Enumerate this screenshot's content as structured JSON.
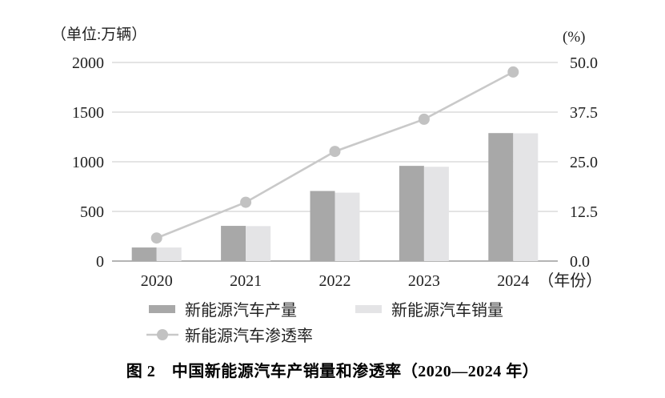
{
  "caption": "图 2　中国新能源汽车产销量和渗透率（2020—2024 年）",
  "colors": {
    "production": "#a8a8a8",
    "sales": "#e4e4e6",
    "line": "#c9c9c9",
    "marker": "#c2c2c2",
    "grid": "#cacaca",
    "axis": "#9b9b9b",
    "text": "#1f1f1f"
  },
  "legend": {
    "production_label": "新能源汽车产量",
    "sales_label": "新能源汽车销量",
    "penetration_label": "新能源汽车渗透率"
  },
  "chart_data": {
    "type": "bar+line",
    "title": "中国新能源汽车产销量和渗透率（2020—2024 年）",
    "categories": [
      "2020",
      "2021",
      "2022",
      "2023",
      "2024"
    ],
    "x_suffix": "（年份）",
    "series": [
      {
        "name": "新能源汽车产量",
        "type": "bar",
        "axis": "left",
        "values": [
          136.6,
          354.5,
          705.8,
          958.7,
          1288.8
        ],
        "color": "#a8a8a8"
      },
      {
        "name": "新能源汽车销量",
        "type": "bar",
        "axis": "left",
        "values": [
          136.7,
          352.1,
          688.7,
          949.5,
          1286.6
        ],
        "color": "#e4e4e6"
      },
      {
        "name": "新能源汽车渗透率",
        "type": "line",
        "axis": "right",
        "values": [
          5.8,
          14.8,
          27.6,
          35.7,
          47.6
        ],
        "color": "#c9c9c9"
      }
    ],
    "left_axis": {
      "label": "（单位:万辆）",
      "max": 2000,
      "ticks": [
        {
          "v": 0,
          "label": "0"
        },
        {
          "v": 500,
          "label": "500"
        },
        {
          "v": 1000,
          "label": "1000"
        },
        {
          "v": 1500,
          "label": "1500"
        },
        {
          "v": 2000,
          "label": "2000"
        }
      ]
    },
    "right_axis": {
      "label": "(%)",
      "max": 50,
      "ticks": [
        {
          "v": 0,
          "label": "0.0"
        },
        {
          "v": 12.5,
          "label": "12.5"
        },
        {
          "v": 25,
          "label": "25.0"
        },
        {
          "v": 37.5,
          "label": "37.5"
        },
        {
          "v": 50,
          "label": "50.0"
        }
      ]
    },
    "grid": true,
    "legend_position": "bottom"
  }
}
